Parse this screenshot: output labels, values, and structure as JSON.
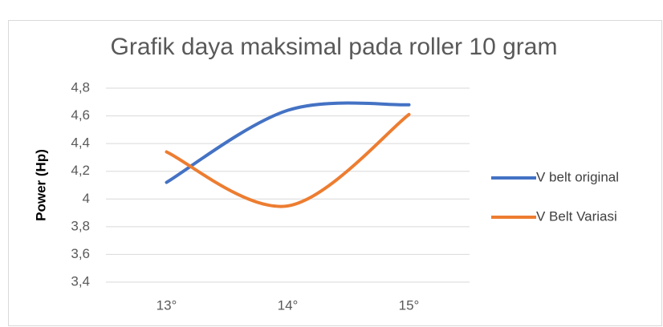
{
  "chart_data": {
    "type": "line",
    "title": "Grafik daya maksimal pada roller 10 gram",
    "y_label": "Power (Hp)",
    "categories": [
      "13°",
      "14°",
      "15°"
    ],
    "series": [
      {
        "name": "V belt original",
        "color": "#4472c4",
        "values": [
          4.12,
          4.64,
          4.68
        ]
      },
      {
        "name": "V Belt Variasi",
        "color": "#ed7d31",
        "values": [
          4.34,
          3.95,
          4.61
        ]
      }
    ],
    "ylim": [
      3.4,
      4.8
    ],
    "yticks": [
      {
        "value": 3.4,
        "label": "3,4"
      },
      {
        "value": 3.6,
        "label": "3,6"
      },
      {
        "value": 3.8,
        "label": "3,8"
      },
      4,
      {
        "value": 4.2,
        "label": "4,2"
      },
      {
        "value": 4.4,
        "label": "4,4"
      },
      {
        "value": 4.6,
        "label": "4,6"
      },
      {
        "value": 4.8,
        "label": "4,8"
      }
    ],
    "grid": true,
    "smooth": true,
    "legend": "right"
  }
}
